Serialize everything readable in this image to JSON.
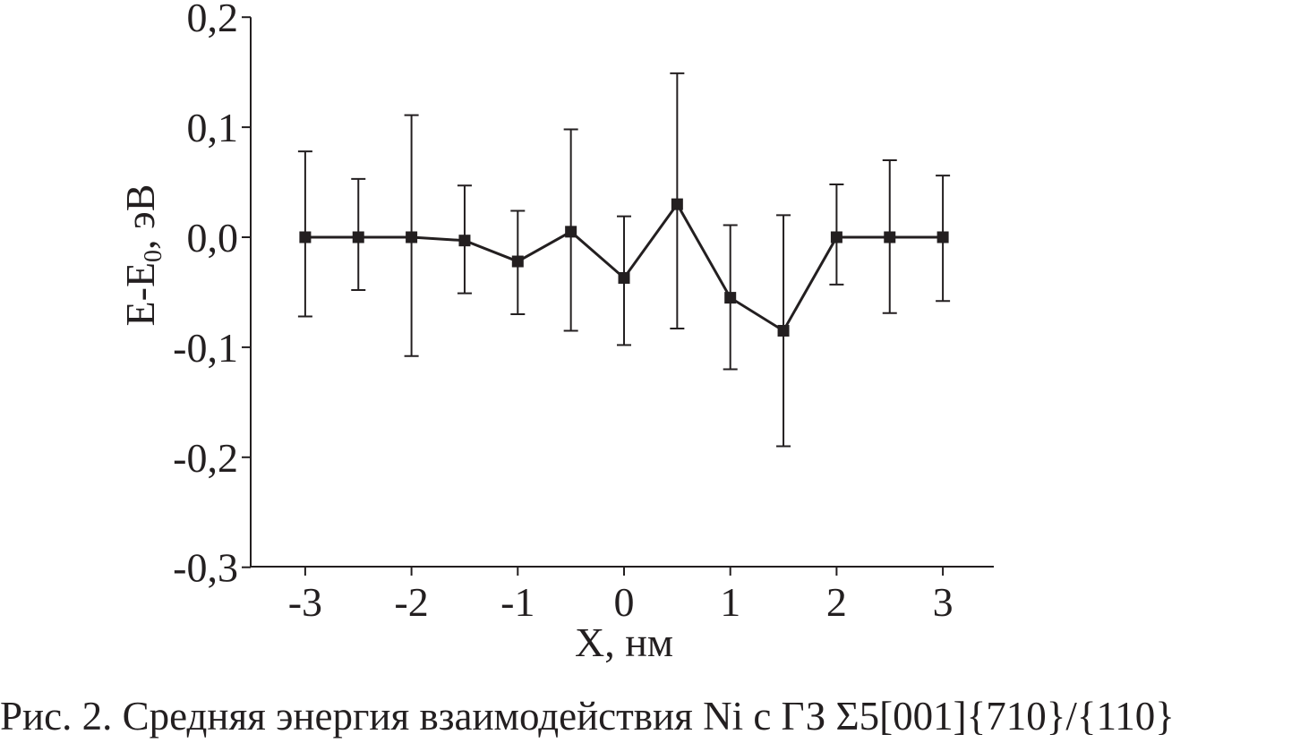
{
  "chart_data": {
    "type": "line",
    "title": "",
    "xlabel": "X, нм",
    "ylabel": {
      "main": "E-E",
      "sub": "0",
      "unit": ", эВ"
    },
    "xlim": [
      -3.5,
      3.5
    ],
    "ylim": [
      -0.3,
      0.2
    ],
    "x_ticks": [
      -3,
      -2,
      -1,
      0,
      1,
      2,
      3
    ],
    "x_tick_labels": [
      "-3",
      "-2",
      "-1",
      "0",
      "1",
      "2",
      "3"
    ],
    "y_ticks": [
      -0.3,
      -0.2,
      -0.1,
      0.0,
      0.1,
      0.2
    ],
    "y_tick_labels": [
      "-0,3",
      "-0,2",
      "-0,1",
      "0,0",
      "0,1",
      "0,2"
    ],
    "grid": false,
    "legend": "none",
    "series": [
      {
        "color": "#231f20",
        "marker": "square",
        "x": [
          -3,
          -2.5,
          -2,
          -1.5,
          -1,
          -0.5,
          0,
          0.5,
          1,
          1.5,
          2,
          2.5,
          3
        ],
        "y": [
          0.0,
          0.0,
          0.0,
          -0.003,
          -0.022,
          0.005,
          -0.037,
          0.03,
          -0.055,
          -0.085,
          0.0,
          0.0,
          0.0
        ],
        "err_upper": [
          0.078,
          0.053,
          0.111,
          0.047,
          0.024,
          0.098,
          0.019,
          0.149,
          0.011,
          0.02,
          0.048,
          0.07,
          0.056
        ],
        "err_lower": [
          -0.072,
          -0.048,
          -0.108,
          -0.051,
          -0.07,
          -0.085,
          -0.098,
          -0.083,
          -0.12,
          -0.19,
          -0.043,
          -0.069,
          -0.058
        ]
      }
    ]
  },
  "caption": "Рис. 2. Средняя энергия взаимодействия Ni с ГЗ Σ5[001]{710}/{110}"
}
